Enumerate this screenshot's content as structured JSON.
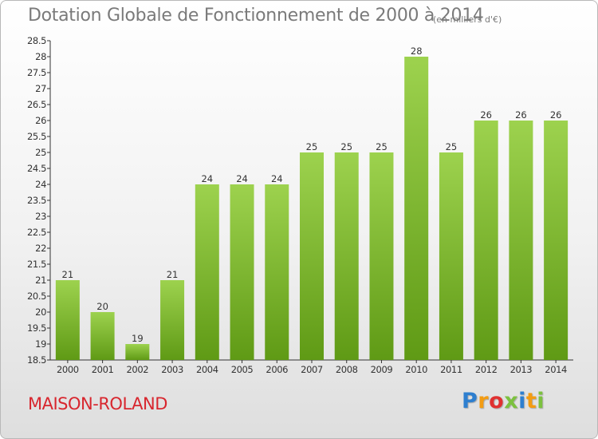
{
  "page": {
    "title": "Dotation Globale de Fonctionnement de 2000 à 2014",
    "title_unit": "(en milliers d'€)",
    "commune": "MAISON-ROLAND",
    "logo": "Proxiti"
  },
  "colors": {
    "bar_top": "#9dd24e",
    "bar_bottom": "#5f9a15",
    "commune": "#d8262e",
    "logo": [
      "#2e7fcf",
      "#f39c12",
      "#e03131",
      "#7cc13f",
      "#2e7fcf",
      "#f39c12",
      "#7cc13f"
    ]
  },
  "chart_data": {
    "type": "bar",
    "categories": [
      "2000",
      "2001",
      "2002",
      "2003",
      "2004",
      "2005",
      "2006",
      "2007",
      "2008",
      "2009",
      "2010",
      "2011",
      "2012",
      "2013",
      "2014"
    ],
    "values": [
      21,
      20,
      19,
      21,
      24,
      24,
      24,
      25,
      25,
      25,
      28,
      25,
      26,
      26,
      26
    ],
    "ylim": [
      18.5,
      28.5
    ],
    "yticks": [
      18.5,
      19,
      19.5,
      20,
      20.5,
      21,
      21.5,
      22,
      22.5,
      23,
      23.5,
      24,
      24.5,
      25,
      25.5,
      26,
      26.5,
      27,
      27.5,
      28,
      28.5
    ],
    "grid": false,
    "data_labels": true
  }
}
